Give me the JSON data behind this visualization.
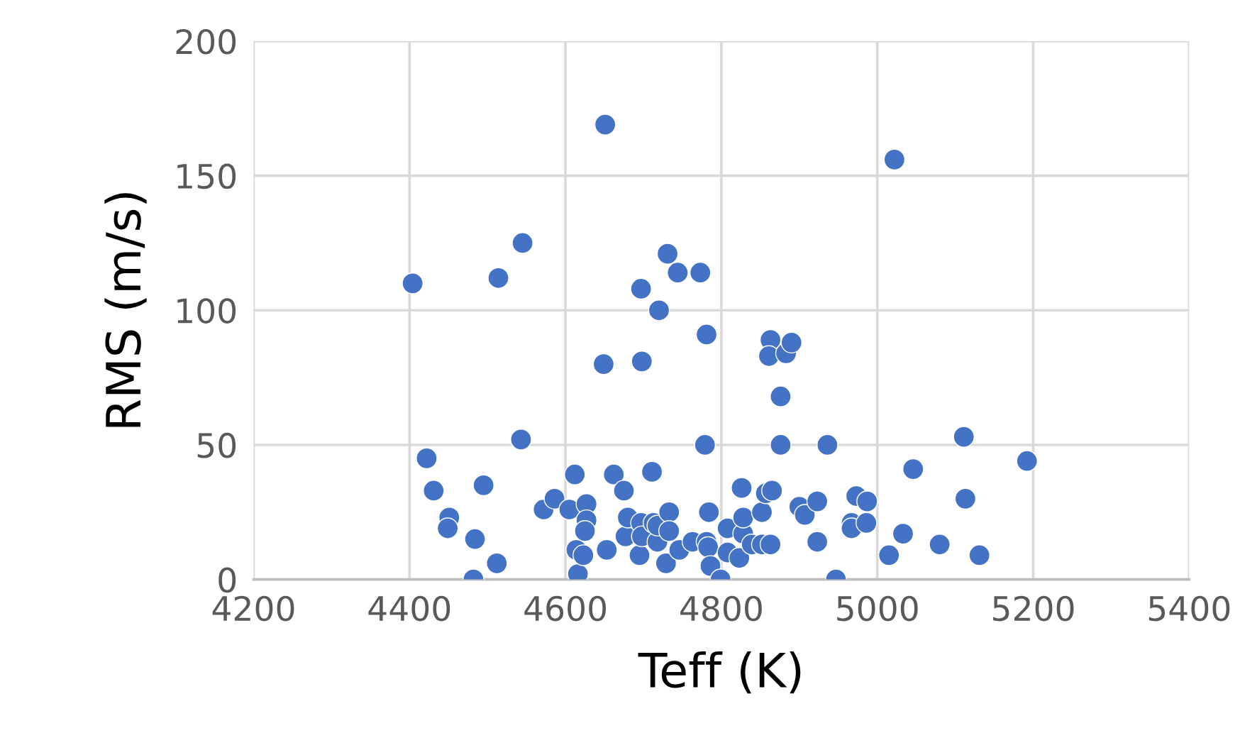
{
  "chart_data": {
    "type": "scatter",
    "xlabel": "Teff (K)",
    "ylabel": "RMS (m/s)",
    "x": [
      4404,
      4422,
      4431,
      4451,
      4449,
      4495,
      4484,
      4482,
      4512,
      4514,
      4545,
      4543,
      4572,
      4586,
      4605,
      4612,
      4614,
      4616,
      4623,
      4627,
      4627,
      4625,
      4649,
      4651,
      4653,
      4662,
      4675,
      4677,
      4680,
      4695,
      4697,
      4698,
      4697,
      4698,
      4711,
      4713,
      4718,
      4720,
      4718,
      4729,
      4731,
      4733,
      4733,
      4744,
      4746,
      4763,
      4773,
      4779,
      4781,
      4781,
      4783,
      4784,
      4786,
      4799,
      4808,
      4808,
      4823,
      4826,
      4828,
      4828,
      4839,
      4852,
      4852,
      4863,
      4857,
      4865,
      4863,
      4861,
      4876,
      4876,
      4883,
      4890,
      4900,
      4907,
      4923,
      4923,
      4936,
      4947,
      4967,
      4967,
      4973,
      4986,
      4987,
      5015,
      5033,
      5046,
      5022,
      5080,
      5111,
      5113,
      5131,
      5192
    ],
    "series": [
      {
        "color": "#4472c4",
        "values": [
          110,
          45,
          33,
          23,
          19,
          35,
          15,
          0,
          6,
          112,
          125,
          52,
          26,
          30,
          26,
          39,
          11,
          2,
          9,
          28,
          22,
          18,
          80,
          169,
          11,
          39,
          33,
          16,
          23,
          9,
          108,
          81,
          21,
          16,
          40,
          21,
          14,
          100,
          20,
          6,
          121,
          25,
          18,
          114,
          11,
          14,
          114,
          50,
          91,
          14,
          12,
          25,
          5,
          0,
          19,
          10,
          8,
          34,
          17,
          23,
          13,
          13,
          25,
          13,
          32,
          33,
          89,
          83,
          50,
          68,
          84,
          88,
          27,
          24,
          29,
          14,
          50,
          0,
          21,
          19,
          31,
          21,
          29,
          9,
          17,
          41,
          156,
          13,
          53,
          30,
          9,
          44
        ]
      }
    ],
    "xlim": [
      4200,
      5400
    ],
    "ylim": [
      0,
      200
    ],
    "xticks": [
      4200,
      4400,
      4600,
      4800,
      5000,
      5200,
      5400
    ],
    "yticks": [
      0,
      50,
      100,
      150,
      200
    ],
    "grid": true,
    "marker": "circle"
  }
}
